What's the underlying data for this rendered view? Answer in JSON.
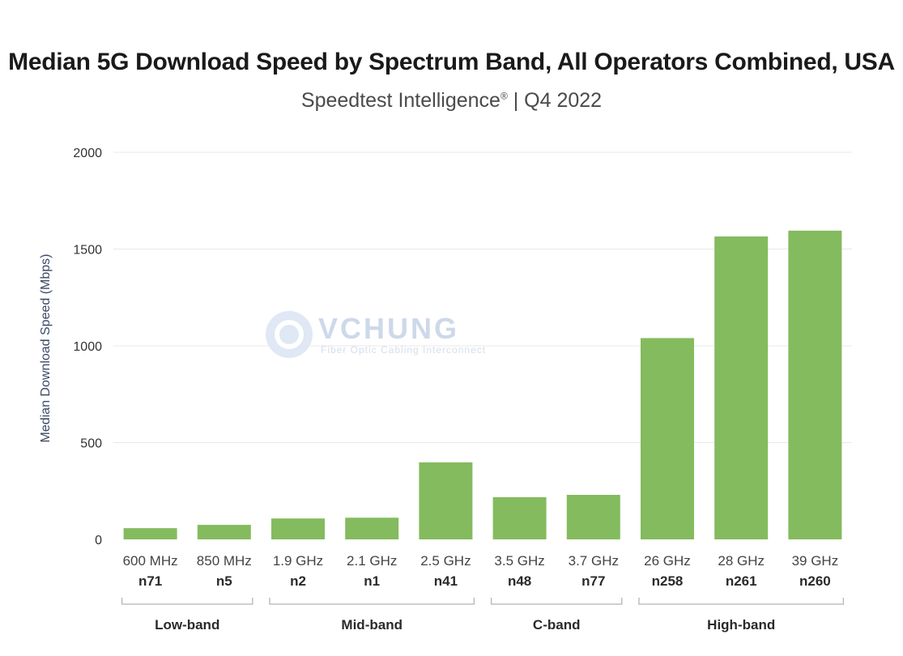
{
  "chart_data": {
    "type": "bar",
    "title": "Median 5G Download Speed by Spectrum Band, All Operators Combined, USA",
    "subtitle_main": "Speedtest Intelligence",
    "subtitle_mark": "®",
    "subtitle_rest": " | Q4 2022",
    "ylabel": "Median Download Speed (Mbps)",
    "ylim": [
      0,
      2000
    ],
    "yticks": [
      0,
      500,
      1000,
      1500,
      2000
    ],
    "grid": true,
    "bar_color": "#84bb5e",
    "categories": [
      "600 MHz",
      "850 MHz",
      "1.9 GHz",
      "2.1 GHz",
      "2.5 GHz",
      "3.5 GHz",
      "3.7 GHz",
      "26 GHz",
      "28 GHz",
      "39 GHz"
    ],
    "codes": [
      "n71",
      "n5",
      "n2",
      "n1",
      "n41",
      "n48",
      "n77",
      "n258",
      "n261",
      "n260"
    ],
    "values": [
      58,
      75,
      108,
      112,
      398,
      218,
      230,
      1040,
      1565,
      1595
    ],
    "groups": [
      {
        "label": "Low-band",
        "from": 0,
        "to": 1
      },
      {
        "label": "Mid-band",
        "from": 2,
        "to": 4
      },
      {
        "label": "C-band",
        "from": 5,
        "to": 6
      },
      {
        "label": "High-band",
        "from": 7,
        "to": 9
      }
    ]
  },
  "watermark": {
    "name": "VCHUNG",
    "tagline": "Fiber Optic Cabling Interconnect"
  }
}
